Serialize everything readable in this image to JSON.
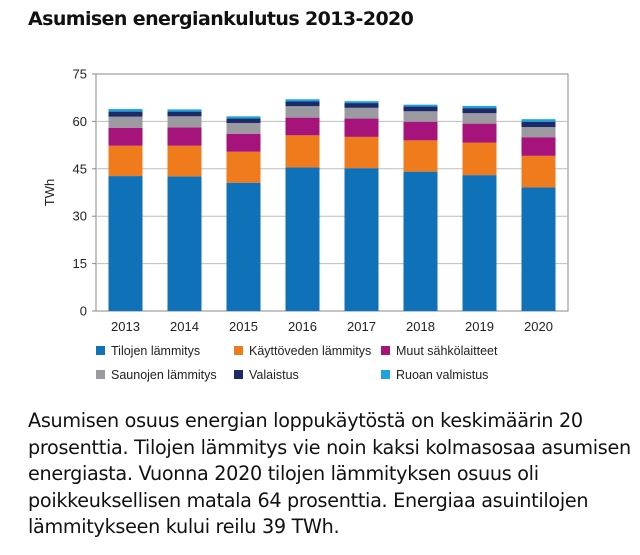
{
  "page": {
    "title": "Asumisen energiankulutus 2013-2020",
    "caption": "Asumisen osuus energian loppukäytöstä on keskimäärin 20 prosenttia. Tilojen lämmitys vie noin kaksi kolmasosaa asumisen energiasta. Vuonna 2020 tilojen lämmityksen osuus oli poikkeuksellisen matala 64 prosenttia. Energiaa asuintilojen lämmitykseen kului reilu 39 TWh."
  },
  "chart_data": {
    "type": "bar",
    "stacked": true,
    "title": "Asumisen energiankulutus 2013-2020",
    "xlabel": "",
    "ylabel": "TWh",
    "ylim": [
      0,
      75
    ],
    "yticks": [
      0,
      15,
      30,
      45,
      60,
      75
    ],
    "grid": true,
    "legend_position": "bottom",
    "categories": [
      "2013",
      "2014",
      "2015",
      "2016",
      "2017",
      "2018",
      "2019",
      "2020"
    ],
    "series": [
      {
        "name": "Tilojen lämmitys",
        "color": "#0f71b8",
        "values": [
          42.7,
          42.6,
          40.6,
          45.4,
          45.2,
          44.1,
          43.0,
          39.1
        ]
      },
      {
        "name": "Käyttöveden lämmitys",
        "color": "#f07b1d",
        "values": [
          9.6,
          9.7,
          9.8,
          10.2,
          9.9,
          9.9,
          10.3,
          10.0
        ]
      },
      {
        "name": "Muut sähkölaitteet",
        "color": "#a6137a",
        "values": [
          5.7,
          5.8,
          5.7,
          5.6,
          5.8,
          5.9,
          6.0,
          5.9
        ]
      },
      {
        "name": "Saunojen lämmitys",
        "color": "#9b9aa1",
        "values": [
          3.5,
          3.5,
          3.4,
          3.6,
          3.4,
          3.3,
          3.3,
          3.2
        ]
      },
      {
        "name": "Valaistus",
        "color": "#1e2a67",
        "values": [
          1.6,
          1.5,
          1.4,
          1.5,
          1.5,
          1.5,
          1.6,
          1.7
        ]
      },
      {
        "name": "Ruoan valmistus",
        "color": "#1aa3dc",
        "values": [
          0.8,
          0.7,
          0.7,
          0.7,
          0.6,
          0.6,
          0.7,
          0.8
        ]
      }
    ]
  }
}
